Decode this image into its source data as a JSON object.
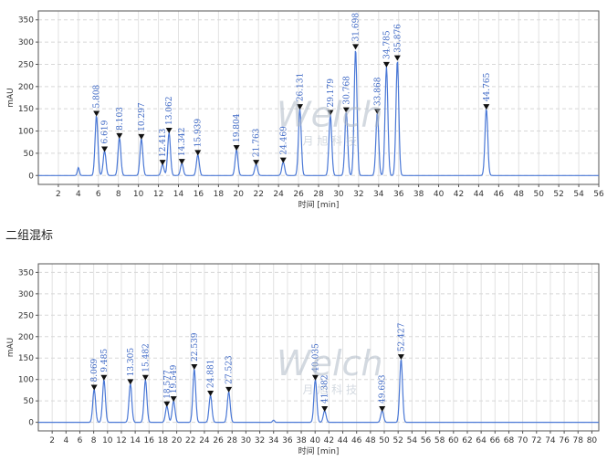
{
  "section_title": "二组混标",
  "watermark": {
    "brand": "Welch",
    "sub": "月 旭 科 技"
  },
  "chart_data": [
    {
      "type": "line",
      "ylabel": "mAU",
      "xlabel": "时间 [min]",
      "xlim": [
        0,
        56
      ],
      "ylim": [
        -20,
        370
      ],
      "xticks": [
        2,
        4,
        6,
        8,
        10,
        12,
        14,
        16,
        18,
        20,
        22,
        24,
        26,
        28,
        30,
        32,
        34,
        36,
        38,
        40,
        42,
        44,
        46,
        48,
        50,
        52,
        54,
        56
      ],
      "yticks": [
        0,
        50,
        100,
        150,
        200,
        250,
        300,
        350
      ],
      "baseline_bumps": [
        [
          4.0,
          18
        ]
      ],
      "grid": true,
      "peaks": [
        {
          "label": "5.808",
          "x": 5.808,
          "y": 135
        },
        {
          "label": "6.619",
          "x": 6.619,
          "y": 55
        },
        {
          "label": "8.103",
          "x": 8.103,
          "y": 85
        },
        {
          "label": "10.297",
          "x": 10.297,
          "y": 83
        },
        {
          "label": "12.413",
          "x": 12.413,
          "y": 25
        },
        {
          "label": "13.062",
          "x": 13.062,
          "y": 97
        },
        {
          "label": "14.342",
          "x": 14.342,
          "y": 27
        },
        {
          "label": "15.939",
          "x": 15.939,
          "y": 47
        },
        {
          "label": "19.804",
          "x": 19.804,
          "y": 58
        },
        {
          "label": "21.763",
          "x": 21.763,
          "y": 25
        },
        {
          "label": "24.469",
          "x": 24.469,
          "y": 30
        },
        {
          "label": "26.131",
          "x": 26.131,
          "y": 150
        },
        {
          "label": "29.179",
          "x": 29.179,
          "y": 137
        },
        {
          "label": "30.768",
          "x": 30.768,
          "y": 143
        },
        {
          "label": "31.698",
          "x": 31.698,
          "y": 285
        },
        {
          "label": "33.868",
          "x": 33.868,
          "y": 140
        },
        {
          "label": "34.785",
          "x": 34.785,
          "y": 245
        },
        {
          "label": "35.876",
          "x": 35.876,
          "y": 260
        },
        {
          "label": "44.765",
          "x": 44.765,
          "y": 150
        }
      ]
    },
    {
      "type": "line",
      "ylabel": "mAU",
      "xlabel": "时间 [min]",
      "xlim": [
        0,
        81
      ],
      "ylim": [
        -20,
        370
      ],
      "xticks": [
        2,
        4,
        6,
        8,
        10,
        12,
        14,
        16,
        18,
        20,
        22,
        24,
        26,
        28,
        30,
        32,
        34,
        36,
        38,
        40,
        42,
        44,
        46,
        48,
        50,
        52,
        54,
        56,
        58,
        60,
        62,
        64,
        66,
        68,
        70,
        72,
        74,
        76,
        78,
        80
      ],
      "yticks": [
        0,
        50,
        100,
        150,
        200,
        250,
        300,
        350
      ],
      "baseline_bumps": [
        [
          34.0,
          5
        ]
      ],
      "grid": true,
      "peaks": [
        {
          "label": "8.069",
          "x": 8.069,
          "y": 77
        },
        {
          "label": "9.485",
          "x": 9.485,
          "y": 100
        },
        {
          "label": "13.305",
          "x": 13.305,
          "y": 90
        },
        {
          "label": "15.482",
          "x": 15.482,
          "y": 100
        },
        {
          "label": "18.577",
          "x": 18.577,
          "y": 38
        },
        {
          "label": "19.549",
          "x": 19.549,
          "y": 50
        },
        {
          "label": "22.539",
          "x": 22.539,
          "y": 125
        },
        {
          "label": "24.881",
          "x": 24.881,
          "y": 63
        },
        {
          "label": "27.523",
          "x": 27.523,
          "y": 72
        },
        {
          "label": "40.035",
          "x": 40.035,
          "y": 100
        },
        {
          "label": "41.382",
          "x": 41.382,
          "y": 27
        },
        {
          "label": "49.693",
          "x": 49.693,
          "y": 27
        },
        {
          "label": "52.427",
          "x": 52.427,
          "y": 148
        }
      ]
    }
  ]
}
